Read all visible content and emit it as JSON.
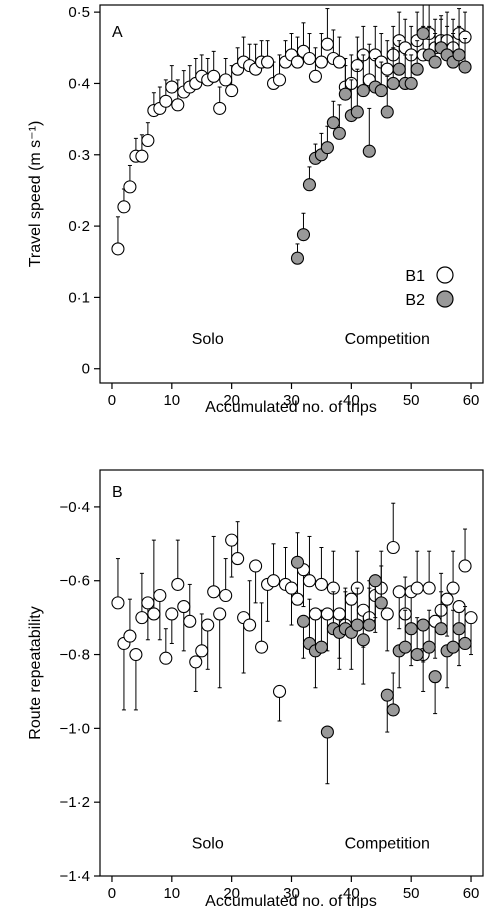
{
  "chart_data": [
    {
      "type": "scatter",
      "panel_label": "A",
      "xlabel": "Accumulated no. of trips",
      "ylabel": "Travel speed (m s⁻¹)",
      "xlim": [
        -2,
        62
      ],
      "ylim": [
        -0.02,
        0.51
      ],
      "xticks": [
        0,
        10,
        20,
        30,
        40,
        50,
        60
      ],
      "xtick_labels": [
        "0",
        "10",
        "20",
        "30",
        "40",
        "50",
        "60"
      ],
      "yticks": [
        0,
        0.1,
        0.2,
        0.3,
        0.4,
        0.5
      ],
      "ytick_labels": [
        "0",
        "0·1",
        "0·2",
        "0·3",
        "0·4",
        "0·5"
      ],
      "grid": false,
      "legend_position": "right",
      "annotations": [
        {
          "text": "Solo",
          "x": 16,
          "y": 0.035
        },
        {
          "text": "Competition",
          "x": 46,
          "y": 0.035
        }
      ],
      "colors": {
        "B1": "#ffffff",
        "B2": "#999999",
        "stroke": "#000000"
      },
      "series": [
        {
          "name": "B1",
          "x": [
            1,
            2,
            3,
            4,
            5,
            6,
            7,
            8,
            9,
            10,
            11,
            12,
            13,
            14,
            15,
            16,
            17,
            18,
            19,
            20,
            21,
            22,
            23,
            24,
            25,
            26,
            27,
            28,
            29,
            30,
            31,
            32,
            33,
            34,
            35,
            36,
            37,
            38,
            39,
            40,
            41,
            42,
            43,
            44,
            45,
            46,
            47,
            48,
            49,
            50,
            51,
            52,
            53,
            54,
            55,
            56,
            57,
            58,
            59
          ],
          "y": [
            0.168,
            0.227,
            0.255,
            0.298,
            0.298,
            0.32,
            0.362,
            0.365,
            0.375,
            0.395,
            0.37,
            0.388,
            0.395,
            0.4,
            0.41,
            0.405,
            0.41,
            0.365,
            0.405,
            0.39,
            0.42,
            0.43,
            0.425,
            0.42,
            0.43,
            0.43,
            0.4,
            0.405,
            0.43,
            0.44,
            0.43,
            0.445,
            0.435,
            0.41,
            0.43,
            0.455,
            0.435,
            0.43,
            0.395,
            0.4,
            0.425,
            0.44,
            0.405,
            0.44,
            0.43,
            0.42,
            0.44,
            0.46,
            0.45,
            0.44,
            0.46,
            0.44,
            0.47,
            0.45,
            0.46,
            0.46,
            0.45,
            0.47,
            0.465
          ],
          "err": [
            0.045,
            0.025,
            0.03,
            0.025,
            0.03,
            0.025,
            0.025,
            0.03,
            0.03,
            0.03,
            0.035,
            0.03,
            0.03,
            0.035,
            0.03,
            0.03,
            0.035,
            0.03,
            0.03,
            0.035,
            0.03,
            0.035,
            0.03,
            0.035,
            0.03,
            0.03,
            0.03,
            0.035,
            0.03,
            0.03,
            0.035,
            0.04,
            0.035,
            0.04,
            0.04,
            0.05,
            0.04,
            0.035,
            0.04,
            0.04,
            0.04,
            0.04,
            0.05,
            0.04,
            0.04,
            0.04,
            0.04,
            0.04,
            0.04,
            0.04,
            0.04,
            0.04,
            0.04,
            0.04,
            0.035,
            0.04,
            0.04,
            0.035,
            0.035
          ]
        },
        {
          "name": "B2",
          "x": [
            31,
            32,
            33,
            34,
            35,
            36,
            37,
            38,
            39,
            40,
            41,
            42,
            43,
            44,
            45,
            46,
            47,
            48,
            49,
            50,
            51,
            52,
            53,
            54,
            55,
            56,
            57,
            58,
            59
          ],
          "y": [
            0.155,
            0.188,
            0.258,
            0.295,
            0.3,
            0.31,
            0.345,
            0.33,
            0.385,
            0.355,
            0.36,
            0.39,
            0.305,
            0.395,
            0.39,
            0.36,
            0.4,
            0.42,
            0.4,
            0.4,
            0.42,
            0.47,
            0.44,
            0.43,
            0.45,
            0.44,
            0.43,
            0.44,
            0.423
          ],
          "err": [
            0.02,
            0.03,
            0.025,
            0.02,
            0.03,
            0.03,
            0.03,
            0.04,
            0.04,
            0.05,
            0.06,
            0.05,
            0.06,
            0.04,
            0.04,
            0.05,
            0.05,
            0.04,
            0.04,
            0.04,
            0.04,
            0.04,
            0.04,
            0.04,
            0.04,
            0.04,
            0.04,
            0.04,
            0.04
          ]
        }
      ]
    },
    {
      "type": "scatter",
      "panel_label": "B",
      "xlabel": "Accumulated no. of trips",
      "ylabel": "Route repeatability",
      "xlim": [
        -2,
        62
      ],
      "ylim": [
        -1.4,
        -0.3
      ],
      "xticks": [
        0,
        10,
        20,
        30,
        40,
        50,
        60
      ],
      "xtick_labels": [
        "0",
        "10",
        "20",
        "30",
        "40",
        "50",
        "60"
      ],
      "yticks": [
        -0.4,
        -0.6,
        -0.8,
        -1.0,
        -1.2,
        -1.4
      ],
      "ytick_labels": [
        "−0·4",
        "−0·6",
        "−0·8",
        "−1·0",
        "−1·2",
        "−1·4"
      ],
      "grid": false,
      "annotations": [
        {
          "text": "Solo",
          "x": 16,
          "y": -1.325
        },
        {
          "text": "Competition",
          "x": 46,
          "y": -1.325
        }
      ],
      "colors": {
        "B1": "#ffffff",
        "B2": "#999999",
        "stroke": "#000000"
      },
      "series": [
        {
          "name": "B1",
          "x": [
            1,
            2,
            3,
            4,
            5,
            6,
            7,
            8,
            9,
            10,
            11,
            12,
            13,
            14,
            15,
            16,
            17,
            18,
            19,
            20,
            21,
            22,
            23,
            24,
            25,
            26,
            27,
            28,
            29,
            30,
            31,
            32,
            33,
            34,
            35,
            36,
            37,
            38,
            39,
            40,
            41,
            42,
            43,
            44,
            45,
            46,
            47,
            48,
            49,
            50,
            51,
            52,
            53,
            54,
            55,
            56,
            57,
            58,
            59,
            60
          ],
          "y": [
            -0.66,
            -0.77,
            -0.75,
            -0.8,
            -0.7,
            -0.66,
            -0.69,
            -0.64,
            -0.81,
            -0.69,
            -0.61,
            -0.67,
            -0.71,
            -0.82,
            -0.79,
            -0.72,
            -0.63,
            -0.69,
            -0.64,
            -0.49,
            -0.54,
            -0.7,
            -0.72,
            -0.56,
            -0.78,
            -0.61,
            -0.6,
            -0.9,
            -0.61,
            -0.62,
            -0.65,
            -0.57,
            -0.6,
            -0.69,
            -0.61,
            -0.69,
            -0.62,
            -0.69,
            -0.72,
            -0.65,
            -0.62,
            -0.68,
            -0.7,
            -0.64,
            -0.62,
            -0.69,
            -0.51,
            -0.63,
            -0.69,
            -0.63,
            -0.62,
            -0.8,
            -0.62,
            -0.71,
            -0.68,
            -0.65,
            -0.62,
            -0.67,
            -0.56,
            -0.7
          ],
          "err": [
            0.12,
            0.18,
            0.1,
            0.15,
            0.12,
            0.1,
            0.2,
            0.12,
            0.08,
            0.08,
            0.12,
            0.12,
            0.1,
            0.08,
            0.1,
            0.12,
            0.15,
            0.2,
            0.1,
            0.1,
            0.1,
            0.15,
            0.12,
            0.1,
            0.12,
            0.1,
            0.1,
            0.08,
            0.1,
            0.1,
            0.1,
            0.1,
            0.12,
            0.1,
            0.1,
            0.1,
            0.1,
            0.12,
            0.1,
            0.1,
            0.1,
            0.1,
            0.1,
            0.1,
            0.1,
            0.1,
            0.12,
            0.1,
            0.1,
            0.1,
            0.1,
            0.1,
            0.1,
            0.1,
            0.1,
            0.1,
            0.1,
            0.1,
            0.1,
            0.1
          ]
        },
        {
          "name": "B2",
          "x": [
            31,
            32,
            33,
            34,
            35,
            36,
            37,
            38,
            39,
            40,
            41,
            42,
            43,
            44,
            45,
            46,
            47,
            48,
            49,
            50,
            51,
            52,
            53,
            54,
            55,
            56,
            57,
            58,
            59
          ],
          "y": [
            -0.55,
            -0.71,
            -0.77,
            -0.79,
            -0.78,
            -1.01,
            -0.73,
            -0.74,
            -0.73,
            -0.74,
            -0.72,
            -0.76,
            -0.72,
            -0.6,
            -0.66,
            -0.91,
            -0.95,
            -0.79,
            -0.78,
            -0.73,
            -0.8,
            -0.72,
            -0.78,
            -0.86,
            -0.73,
            -0.79,
            -0.78,
            -0.73,
            -0.77
          ],
          "err": [
            0.08,
            0.1,
            0.12,
            0.1,
            0.1,
            0.14,
            0.1,
            0.1,
            0.1,
            0.1,
            0.1,
            0.12,
            0.1,
            0.1,
            0.1,
            0.1,
            0.1,
            0.1,
            0.1,
            0.1,
            0.1,
            0.1,
            0.1,
            0.1,
            0.1,
            0.1,
            0.1,
            0.1,
            0.1
          ]
        }
      ]
    }
  ]
}
